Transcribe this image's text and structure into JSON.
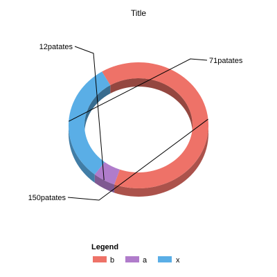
{
  "chart_data": {
    "type": "pie",
    "style": "doughnut-3d",
    "title": "Title",
    "categories": [
      "b",
      "a",
      "x"
    ],
    "values": [
      150,
      12,
      71
    ],
    "data_labels": [
      "150patates",
      "12patates",
      "71patates"
    ],
    "colors": [
      "#ee7268",
      "#b07ccb",
      "#5aaee6"
    ],
    "legend": {
      "title": "Legend",
      "placement": "bottom-center",
      "items": [
        {
          "label": "b",
          "color": "#ee7268"
        },
        {
          "label": "a",
          "color": "#b07ccb"
        },
        {
          "label": "x",
          "color": "#5aaee6"
        }
      ]
    }
  }
}
